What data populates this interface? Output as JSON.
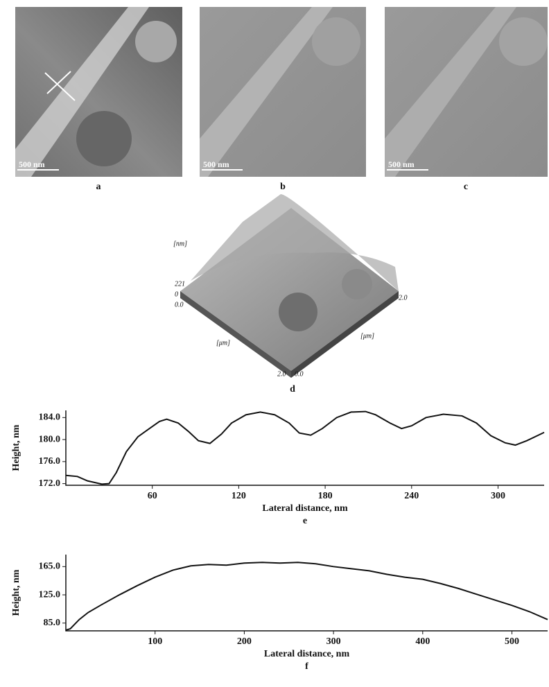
{
  "panels": {
    "a": "a",
    "b": "b",
    "c": "c",
    "d": "d",
    "scale_a": "500 nm",
    "scale_b": "500 nm",
    "scale_c": "500 nm"
  },
  "surface": {
    "z_unit": "[nm]",
    "z_max": "221",
    "z_min": "0",
    "x_start": "0.0",
    "x_unit": "[μm]",
    "x_end": "2.0",
    "y_start": "0.0",
    "y_unit": "[μm]",
    "y_end": "2.0"
  },
  "chart_data": [
    {
      "type": "line",
      "panel": "e",
      "x_label": "Lateral distance, nm",
      "y_label": "Height, nm",
      "xlim": [
        0,
        332
      ],
      "ylim": [
        171.7,
        185.3
      ],
      "xticks": [
        60,
        120,
        180,
        240,
        300
      ],
      "yticks": [
        {
          "value": 172,
          "label": "172.0"
        },
        {
          "value": 176,
          "label": "176.0"
        },
        {
          "value": 180,
          "label": "180.0"
        },
        {
          "value": 184,
          "label": "184.0"
        }
      ],
      "color": "#111",
      "x": [
        0,
        8,
        15,
        25,
        30,
        35,
        42,
        50,
        58,
        65,
        70,
        78,
        85,
        92,
        100,
        108,
        115,
        125,
        135,
        145,
        155,
        162,
        170,
        178,
        188,
        198,
        208,
        215,
        225,
        233,
        240,
        250,
        262,
        275,
        285,
        295,
        305,
        312,
        320,
        332
      ],
      "values": [
        173.5,
        173.3,
        172.5,
        171.9,
        172,
        174,
        177.8,
        180.5,
        182,
        183.3,
        183.7,
        183,
        181.5,
        179.8,
        179.3,
        181,
        183,
        184.5,
        185,
        184.5,
        183,
        181.2,
        180.8,
        182,
        184,
        185,
        185.1,
        184.5,
        183,
        182,
        182.5,
        184,
        184.6,
        184.3,
        183,
        180.7,
        179.4,
        179,
        179.8,
        181.3
      ]
    },
    {
      "type": "line",
      "panel": "f",
      "x_label": "Lateral distance, nm",
      "y_label": "Height, nm",
      "xlim": [
        0,
        540
      ],
      "ylim": [
        74,
        182
      ],
      "xticks": [
        100,
        200,
        300,
        400,
        500
      ],
      "yticks": [
        {
          "value": 85,
          "label": "85.0"
        },
        {
          "value": 125,
          "label": "125.0"
        },
        {
          "value": 165,
          "label": "165.0"
        }
      ],
      "color": "#111",
      "x": [
        0,
        5,
        15,
        25,
        40,
        60,
        80,
        100,
        120,
        140,
        160,
        180,
        200,
        220,
        240,
        260,
        280,
        300,
        320,
        340,
        360,
        380,
        400,
        420,
        440,
        460,
        480,
        500,
        520,
        540
      ],
      "values": [
        75,
        77,
        90,
        100,
        111,
        125,
        138,
        150,
        160,
        166,
        168,
        167,
        170,
        171,
        170,
        171,
        169,
        165,
        162,
        159,
        154,
        150,
        147,
        141,
        134,
        126,
        118,
        110,
        101,
        90
      ]
    }
  ]
}
